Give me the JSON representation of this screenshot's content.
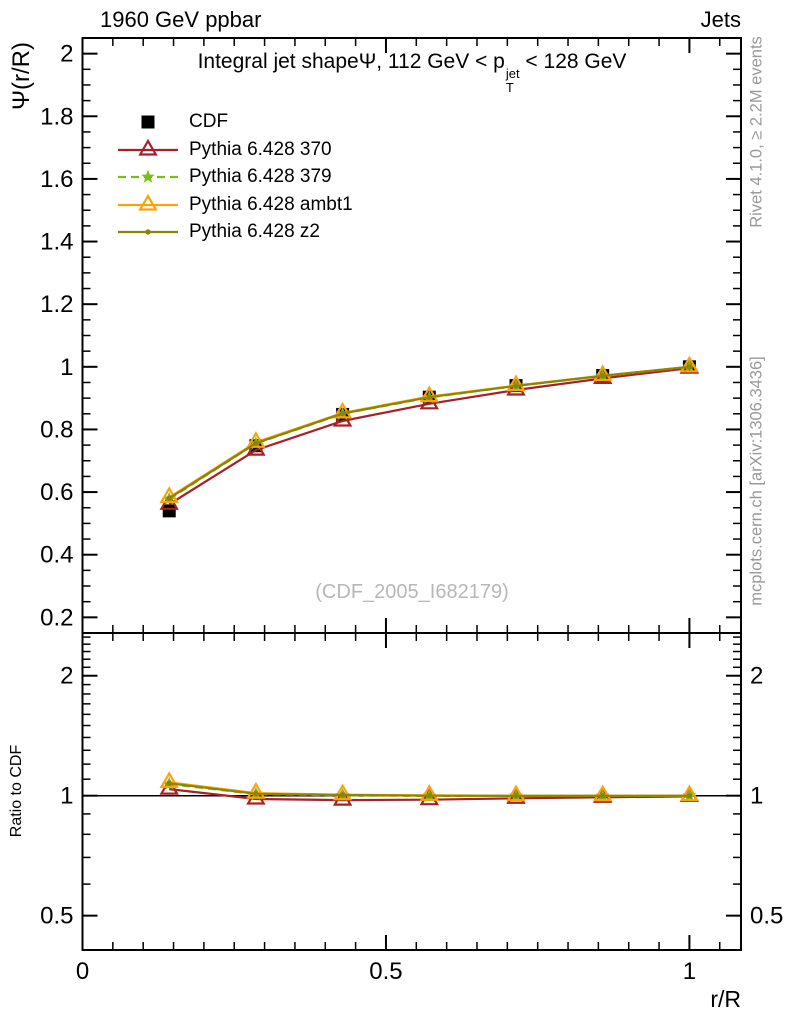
{
  "header": {
    "left": "1960 GeV ppbar",
    "right": "Jets"
  },
  "title_parts": {
    "lead": "Integral jet shape",
    "psi": "Ψ",
    "mid": ", 112 GeV < p",
    "sup": "jet",
    "sub": "T",
    "tail": " < 128 GeV"
  },
  "watermark": "(CDF_2005_I682179)",
  "side_notes": {
    "top": "Rivet 4.1.0, ≥ 2.2M events",
    "bottom": "mcplots.cern.ch [arXiv:1306.3436]"
  },
  "colors": {
    "cdf": "#000000",
    "py370": "#a5202a",
    "py379": "#77bf10",
    "ambt1": "#fba30b",
    "z2": "#8c8403",
    "side_text": "#999999",
    "watermark": "#b7b7b7"
  },
  "legend": {
    "items": [
      {
        "label": "CDF",
        "marker": "square",
        "line": "none",
        "color": "#000000"
      },
      {
        "label": "Pythia 6.428 370",
        "marker": "triangle-open",
        "line": "solid",
        "color": "#a5202a"
      },
      {
        "label": "Pythia 6.428 379",
        "marker": "star",
        "line": "dashed",
        "color": "#77bf10"
      },
      {
        "label": "Pythia 6.428 ambt1",
        "marker": "triangle-open",
        "line": "solid",
        "color": "#fba30b"
      },
      {
        "label": "Pythia 6.428 z2",
        "marker": "dot",
        "line": "solid",
        "color": "#8c8403"
      }
    ]
  },
  "chart_data": [
    {
      "type": "line",
      "panel": "main",
      "title": "Integral jet shape Ψ, 112 GeV < p_T^jet < 128 GeV",
      "xlabel": "r/R",
      "ylabel": "Ψ(r/R)",
      "xlim": [
        0,
        1.085
      ],
      "ylim": [
        0.15,
        2.05
      ],
      "yscale": "linear",
      "grid": false,
      "legend_position": "top-left",
      "xticks": [
        0,
        0.5,
        1
      ],
      "xtick_minor_step": 0.05,
      "ytick_major_step": 0.2,
      "ytick_minor_step": 0.05,
      "x": [
        0.1429,
        0.2857,
        0.4286,
        0.5714,
        0.7143,
        0.8571,
        1.0
      ],
      "series": [
        {
          "name": "CDF",
          "marker": "square",
          "line": "none",
          "color": "#000000",
          "values": [
            0.54,
            0.748,
            0.848,
            0.903,
            0.94,
            0.972,
            1.0
          ]
        },
        {
          "name": "Pythia 6.428 370",
          "marker": "triangle-open",
          "line": "solid",
          "color": "#a5202a",
          "values": [
            0.561,
            0.734,
            0.827,
            0.882,
            0.926,
            0.963,
            0.996
          ]
        },
        {
          "name": "Pythia 6.428 379",
          "marker": "star",
          "line": "dashed",
          "color": "#77bf10",
          "values": [
            0.578,
            0.755,
            0.85,
            0.902,
            0.939,
            0.971,
            1.0
          ]
        },
        {
          "name": "Pythia 6.428 ambt1",
          "marker": "triangle-open",
          "line": "solid",
          "color": "#fba30b",
          "values": [
            0.583,
            0.759,
            0.853,
            0.905,
            0.94,
            0.972,
            1.0
          ]
        },
        {
          "name": "Pythia 6.428 z2",
          "marker": "dot",
          "line": "solid",
          "color": "#8c8403",
          "values": [
            0.58,
            0.756,
            0.851,
            0.903,
            0.939,
            0.971,
            1.0
          ]
        }
      ]
    },
    {
      "type": "line",
      "panel": "ratio",
      "xlabel": "r/R",
      "ylabel": "Ratio to CDF",
      "xlim": [
        0,
        1.085
      ],
      "ylim": [
        0.41,
        2.56
      ],
      "yscale": "log",
      "grid": false,
      "xticks": [
        0,
        0.5,
        1
      ],
      "xtick_minor_step": 0.05,
      "yticks": [
        0.5,
        1,
        2
      ],
      "refline_y": 1,
      "x": [
        0.1429,
        0.2857,
        0.4286,
        0.5714,
        0.7143,
        0.8571,
        1.0
      ],
      "series": [
        {
          "name": "Pythia 6.428 370",
          "marker": "triangle-open",
          "line": "solid",
          "color": "#a5202a",
          "values": [
            1.039,
            0.981,
            0.975,
            0.977,
            0.985,
            0.991,
            0.996
          ]
        },
        {
          "name": "Pythia 6.428 379",
          "marker": "star",
          "line": "dashed",
          "color": "#77bf10",
          "values": [
            1.07,
            1.009,
            1.002,
            0.999,
            0.999,
            0.999,
            1.0
          ]
        },
        {
          "name": "Pythia 6.428 ambt1",
          "marker": "triangle-open",
          "line": "solid",
          "color": "#fba30b",
          "values": [
            1.08,
            1.015,
            1.006,
            1.002,
            1.0,
            1.0,
            1.0
          ]
        },
        {
          "name": "Pythia 6.428 z2",
          "marker": "dot",
          "line": "solid",
          "color": "#8c8403",
          "values": [
            1.074,
            1.011,
            1.004,
            1.0,
            0.999,
            0.999,
            1.0
          ]
        }
      ]
    }
  ]
}
